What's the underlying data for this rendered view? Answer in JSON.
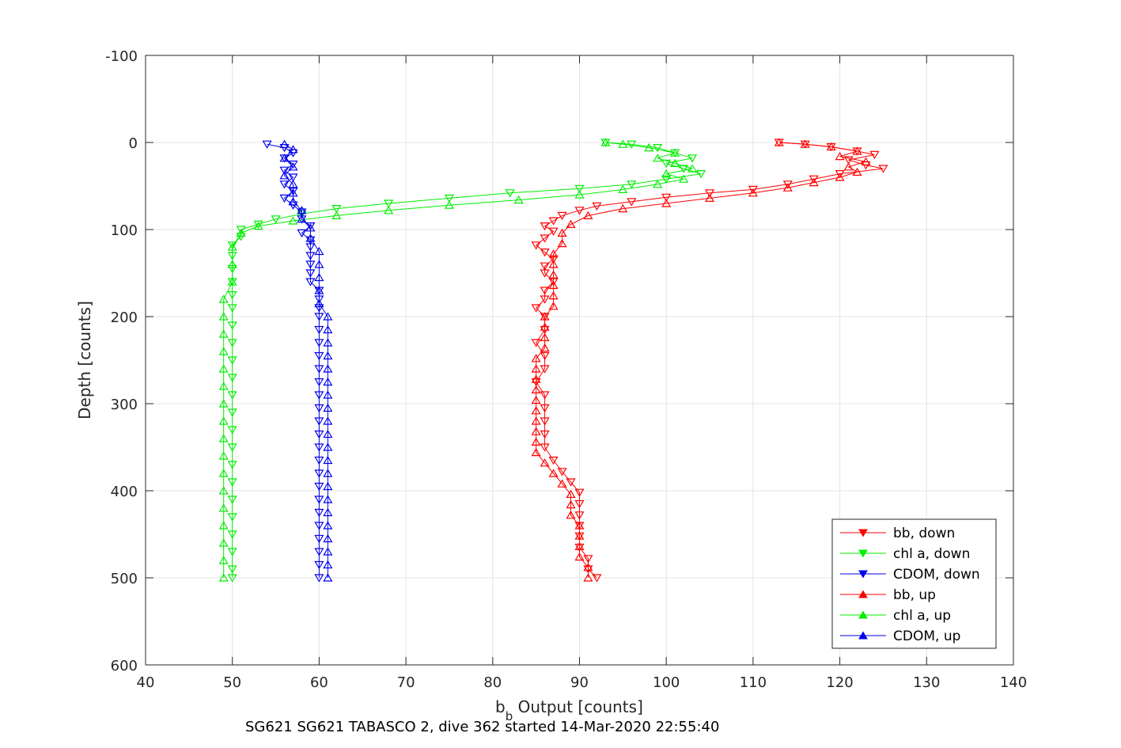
{
  "chart_data": {
    "type": "line",
    "xlabel": "b",
    "xlabel_subscript": "b",
    "xlabel_rest": " Output [counts]",
    "ylabel": "Depth [counts]",
    "caption": "SG621 SG621 TABASCO 2, dive 362 started 14-Mar-2020 22:55:40",
    "xlim": [
      40,
      140
    ],
    "ylim": [
      -100,
      600
    ],
    "y_reversed": true,
    "x_ticks": [
      40,
      50,
      60,
      70,
      80,
      90,
      100,
      110,
      120,
      130,
      140
    ],
    "y_ticks": [
      -100,
      0,
      100,
      200,
      300,
      400,
      500,
      600
    ],
    "x_tick_labels": [
      "40",
      "50",
      "60",
      "70",
      "80",
      "90",
      "100",
      "110",
      "120",
      "130",
      "140"
    ],
    "y_tick_labels": [
      "-100",
      "0",
      "100",
      "200",
      "300",
      "400",
      "500",
      "600"
    ],
    "grid": true,
    "legend_position": "bottom-right",
    "colors": {
      "bb": "#ff0000",
      "chl": "#00ee00",
      "cdom": "#0000ee"
    },
    "series": [
      {
        "name": "bb, down",
        "color": "#ff0000",
        "marker": "triangle-down",
        "points": [
          [
            113,
            0
          ],
          [
            116,
            2
          ],
          [
            119,
            5
          ],
          [
            122,
            10
          ],
          [
            124,
            14
          ],
          [
            121,
            20
          ],
          [
            123,
            26
          ],
          [
            125,
            30
          ],
          [
            120,
            36
          ],
          [
            117,
            42
          ],
          [
            114,
            48
          ],
          [
            110,
            54
          ],
          [
            105,
            58
          ],
          [
            100,
            63
          ],
          [
            96,
            68
          ],
          [
            92,
            73
          ],
          [
            90,
            78
          ],
          [
            88,
            84
          ],
          [
            87,
            90
          ],
          [
            86,
            96
          ],
          [
            87,
            102
          ],
          [
            86,
            110
          ],
          [
            85,
            118
          ],
          [
            86,
            126
          ],
          [
            87,
            134
          ],
          [
            86,
            142
          ],
          [
            86,
            150
          ],
          [
            87,
            160
          ],
          [
            86,
            170
          ],
          [
            86,
            180
          ],
          [
            85,
            190
          ],
          [
            86,
            200
          ],
          [
            86,
            215
          ],
          [
            85,
            230
          ],
          [
            86,
            245
          ],
          [
            86,
            260
          ],
          [
            85,
            275
          ],
          [
            86,
            290
          ],
          [
            86,
            305
          ],
          [
            86,
            320
          ],
          [
            86,
            335
          ],
          [
            86,
            350
          ],
          [
            87,
            365
          ],
          [
            88,
            378
          ],
          [
            89,
            390
          ],
          [
            90,
            402
          ],
          [
            90,
            415
          ],
          [
            90,
            428
          ],
          [
            90,
            440
          ],
          [
            90,
            452
          ],
          [
            90,
            465
          ],
          [
            91,
            478
          ],
          [
            91,
            490
          ],
          [
            92,
            500
          ]
        ]
      },
      {
        "name": "chl a, down",
        "color": "#00ee00",
        "marker": "triangle-down",
        "points": [
          [
            93,
            0
          ],
          [
            96,
            2
          ],
          [
            99,
            6
          ],
          [
            101,
            12
          ],
          [
            103,
            18
          ],
          [
            100,
            24
          ],
          [
            102,
            30
          ],
          [
            104,
            36
          ],
          [
            100,
            42
          ],
          [
            96,
            48
          ],
          [
            90,
            53
          ],
          [
            82,
            58
          ],
          [
            75,
            64
          ],
          [
            68,
            70
          ],
          [
            62,
            76
          ],
          [
            58,
            82
          ],
          [
            55,
            88
          ],
          [
            53,
            94
          ],
          [
            51,
            100
          ],
          [
            51,
            108
          ],
          [
            50,
            118
          ],
          [
            50,
            130
          ],
          [
            50,
            145
          ],
          [
            50,
            160
          ],
          [
            50,
            175
          ],
          [
            50,
            190
          ],
          [
            50,
            210
          ],
          [
            50,
            230
          ],
          [
            50,
            250
          ],
          [
            50,
            270
          ],
          [
            50,
            290
          ],
          [
            50,
            310
          ],
          [
            50,
            330
          ],
          [
            50,
            350
          ],
          [
            50,
            370
          ],
          [
            50,
            390
          ],
          [
            50,
            410
          ],
          [
            50,
            430
          ],
          [
            50,
            450
          ],
          [
            50,
            470
          ],
          [
            50,
            490
          ],
          [
            50,
            500
          ]
        ]
      },
      {
        "name": "CDOM, down",
        "color": "#0000ee",
        "marker": "triangle-down",
        "points": [
          [
            54,
            2
          ],
          [
            56,
            6
          ],
          [
            57,
            12
          ],
          [
            56,
            18
          ],
          [
            57,
            25
          ],
          [
            56,
            32
          ],
          [
            57,
            40
          ],
          [
            56,
            48
          ],
          [
            57,
            56
          ],
          [
            56,
            64
          ],
          [
            57,
            72
          ],
          [
            58,
            80
          ],
          [
            58,
            88
          ],
          [
            59,
            96
          ],
          [
            58,
            104
          ],
          [
            59,
            112
          ],
          [
            59,
            120
          ],
          [
            59,
            130
          ],
          [
            59,
            140
          ],
          [
            59,
            150
          ],
          [
            59,
            160
          ],
          [
            60,
            170
          ],
          [
            60,
            180
          ],
          [
            60,
            190
          ],
          [
            60,
            200
          ],
          [
            60,
            215
          ],
          [
            60,
            230
          ],
          [
            60,
            245
          ],
          [
            60,
            260
          ],
          [
            60,
            275
          ],
          [
            60,
            290
          ],
          [
            60,
            305
          ],
          [
            60,
            320
          ],
          [
            60,
            335
          ],
          [
            60,
            350
          ],
          [
            60,
            365
          ],
          [
            60,
            380
          ],
          [
            60,
            395
          ],
          [
            60,
            410
          ],
          [
            60,
            425
          ],
          [
            60,
            440
          ],
          [
            60,
            455
          ],
          [
            60,
            470
          ],
          [
            60,
            485
          ],
          [
            60,
            500
          ]
        ]
      },
      {
        "name": "bb, up",
        "color": "#ff0000",
        "marker": "triangle-up",
        "points": [
          [
            91,
            500
          ],
          [
            91,
            488
          ],
          [
            90,
            476
          ],
          [
            90,
            464
          ],
          [
            90,
            452
          ],
          [
            90,
            440
          ],
          [
            89,
            428
          ],
          [
            89,
            416
          ],
          [
            89,
            404
          ],
          [
            88,
            392
          ],
          [
            87,
            380
          ],
          [
            86,
            368
          ],
          [
            85,
            356
          ],
          [
            85,
            344
          ],
          [
            85,
            332
          ],
          [
            85,
            320
          ],
          [
            85,
            308
          ],
          [
            85,
            296
          ],
          [
            85,
            284
          ],
          [
            85,
            272
          ],
          [
            85,
            260
          ],
          [
            85,
            248
          ],
          [
            86,
            236
          ],
          [
            86,
            224
          ],
          [
            86,
            212
          ],
          [
            86,
            200
          ],
          [
            87,
            188
          ],
          [
            87,
            176
          ],
          [
            87,
            164
          ],
          [
            87,
            152
          ],
          [
            87,
            140
          ],
          [
            87,
            128
          ],
          [
            88,
            116
          ],
          [
            88,
            104
          ],
          [
            89,
            94
          ],
          [
            91,
            84
          ],
          [
            95,
            76
          ],
          [
            100,
            70
          ],
          [
            105,
            64
          ],
          [
            110,
            58
          ],
          [
            114,
            52
          ],
          [
            117,
            46
          ],
          [
            120,
            40
          ],
          [
            122,
            34
          ],
          [
            121,
            28
          ],
          [
            123,
            22
          ],
          [
            120,
            16
          ],
          [
            122,
            10
          ],
          [
            119,
            5
          ],
          [
            116,
            2
          ],
          [
            113,
            0
          ]
        ]
      },
      {
        "name": "chl a, up",
        "color": "#00ee00",
        "marker": "triangle-up",
        "points": [
          [
            49,
            500
          ],
          [
            49,
            480
          ],
          [
            49,
            460
          ],
          [
            49,
            440
          ],
          [
            49,
            420
          ],
          [
            49,
            400
          ],
          [
            49,
            380
          ],
          [
            49,
            360
          ],
          [
            49,
            340
          ],
          [
            49,
            320
          ],
          [
            49,
            300
          ],
          [
            49,
            280
          ],
          [
            49,
            260
          ],
          [
            49,
            240
          ],
          [
            49,
            220
          ],
          [
            49,
            200
          ],
          [
            49,
            180
          ],
          [
            50,
            160
          ],
          [
            50,
            140
          ],
          [
            50,
            120
          ],
          [
            51,
            104
          ],
          [
            53,
            96
          ],
          [
            57,
            90
          ],
          [
            62,
            84
          ],
          [
            68,
            78
          ],
          [
            75,
            72
          ],
          [
            83,
            66
          ],
          [
            90,
            60
          ],
          [
            95,
            54
          ],
          [
            99,
            48
          ],
          [
            102,
            42
          ],
          [
            100,
            36
          ],
          [
            103,
            30
          ],
          [
            101,
            24
          ],
          [
            99,
            18
          ],
          [
            101,
            12
          ],
          [
            98,
            6
          ],
          [
            95,
            2
          ],
          [
            93,
            0
          ]
        ]
      },
      {
        "name": "CDOM, up",
        "color": "#0000ee",
        "marker": "triangle-up",
        "points": [
          [
            61,
            500
          ],
          [
            61,
            485
          ],
          [
            61,
            470
          ],
          [
            61,
            455
          ],
          [
            61,
            440
          ],
          [
            61,
            425
          ],
          [
            61,
            410
          ],
          [
            61,
            395
          ],
          [
            61,
            380
          ],
          [
            61,
            365
          ],
          [
            61,
            350
          ],
          [
            61,
            335
          ],
          [
            61,
            320
          ],
          [
            61,
            305
          ],
          [
            61,
            290
          ],
          [
            61,
            275
          ],
          [
            61,
            260
          ],
          [
            61,
            245
          ],
          [
            61,
            230
          ],
          [
            61,
            215
          ],
          [
            61,
            200
          ],
          [
            60,
            185
          ],
          [
            60,
            170
          ],
          [
            60,
            155
          ],
          [
            60,
            140
          ],
          [
            60,
            125
          ],
          [
            59,
            110
          ],
          [
            59,
            98
          ],
          [
            58,
            88
          ],
          [
            58,
            78
          ],
          [
            57,
            68
          ],
          [
            57,
            58
          ],
          [
            57,
            48
          ],
          [
            56,
            38
          ],
          [
            57,
            28
          ],
          [
            56,
            18
          ],
          [
            57,
            8
          ],
          [
            56,
            2
          ]
        ]
      }
    ]
  }
}
